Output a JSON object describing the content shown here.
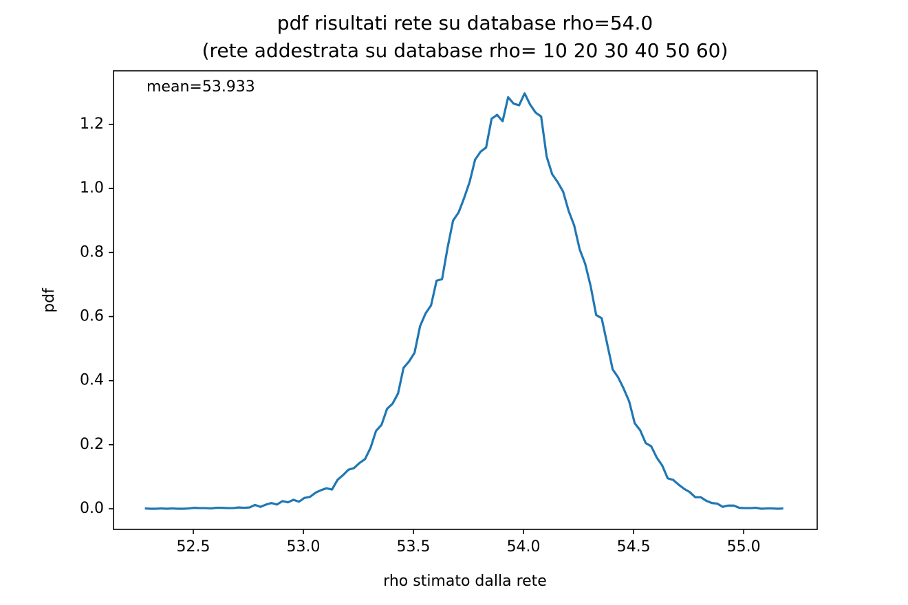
{
  "chart_data": {
    "type": "line",
    "title": "pdf risultati rete su database rho=54.0",
    "subtitle": "(rete addestrata su database rho= 10 20 30 40 50 60)",
    "xlabel": "rho stimato dalla rete",
    "ylabel": "pdf",
    "annotation": "mean=53.933",
    "x": [
      52.28,
      52.305,
      52.33,
      52.355,
      52.38,
      52.405,
      52.43,
      52.455,
      52.48,
      52.505,
      52.53,
      52.555,
      52.58,
      52.605,
      52.63,
      52.655,
      52.68,
      52.705,
      52.73,
      52.755,
      52.78,
      52.805,
      52.83,
      52.855,
      52.88,
      52.905,
      52.93,
      52.955,
      52.98,
      53.005,
      53.03,
      53.055,
      53.08,
      53.105,
      53.13,
      53.155,
      53.18,
      53.205,
      53.23,
      53.255,
      53.28,
      53.305,
      53.33,
      53.355,
      53.38,
      53.405,
      53.43,
      53.455,
      53.48,
      53.505,
      53.53,
      53.555,
      53.58,
      53.605,
      53.63,
      53.655,
      53.68,
      53.705,
      53.73,
      53.755,
      53.78,
      53.805,
      53.83,
      53.855,
      53.88,
      53.905,
      53.93,
      53.955,
      53.98,
      54.005,
      54.03,
      54.055,
      54.08,
      54.105,
      54.13,
      54.155,
      54.18,
      54.205,
      54.23,
      54.255,
      54.28,
      54.305,
      54.33,
      54.355,
      54.38,
      54.405,
      54.43,
      54.455,
      54.48,
      54.505,
      54.53,
      54.555,
      54.58,
      54.605,
      54.63,
      54.655,
      54.68,
      54.705,
      54.73,
      54.755,
      54.78,
      54.805,
      54.83,
      54.855,
      54.88,
      54.905,
      54.93,
      54.955,
      54.98,
      55.005,
      55.03,
      55.055,
      55.08,
      55.105,
      55.13,
      55.155,
      55.18
    ],
    "series": [
      {
        "name": "pdf",
        "color": "#1f77b4",
        "values": [
          0.001,
          0,
          0,
          0.001,
          0,
          0.001,
          0,
          0,
          0.001,
          0.003,
          0.002,
          0.002,
          0.001,
          0.003,
          0.003,
          0.002,
          0.002,
          0.004,
          0.003,
          0.004,
          0.012,
          0.006,
          0.013,
          0.018,
          0.013,
          0.024,
          0.02,
          0.028,
          0.022,
          0.034,
          0.037,
          0.05,
          0.058,
          0.064,
          0.06,
          0.09,
          0.105,
          0.122,
          0.127,
          0.143,
          0.155,
          0.19,
          0.243,
          0.262,
          0.312,
          0.328,
          0.36,
          0.44,
          0.46,
          0.487,
          0.57,
          0.61,
          0.635,
          0.712,
          0.717,
          0.815,
          0.9,
          0.925,
          0.97,
          1.02,
          1.09,
          1.115,
          1.128,
          1.218,
          1.23,
          1.21,
          1.285,
          1.265,
          1.26,
          1.297,
          1.262,
          1.237,
          1.225,
          1.1,
          1.045,
          1.02,
          0.99,
          0.93,
          0.885,
          0.81,
          0.765,
          0.695,
          0.605,
          0.595,
          0.515,
          0.435,
          0.41,
          0.375,
          0.335,
          0.267,
          0.245,
          0.205,
          0.195,
          0.16,
          0.135,
          0.095,
          0.09,
          0.075,
          0.062,
          0.052,
          0.036,
          0.036,
          0.025,
          0.018,
          0.016,
          0.006,
          0.01,
          0.01,
          0.003,
          0.002,
          0.002,
          0.003,
          0,
          0.001,
          0.001,
          0,
          0.001
        ]
      }
    ],
    "xlim": [
      52.1375,
      55.334
    ],
    "ylim": [
      -0.0644,
      1.3675
    ],
    "xticks": [
      {
        "value": 52.5,
        "label": "52.5"
      },
      {
        "value": 53,
        "label": "53.0"
      },
      {
        "value": 53.5,
        "label": "53.5"
      },
      {
        "value": 54,
        "label": "54.0"
      },
      {
        "value": 54.5,
        "label": "54.5"
      },
      {
        "value": 55,
        "label": "55.0"
      }
    ],
    "yticks": [
      {
        "value": 0,
        "label": "0.0"
      },
      0.2,
      0.4,
      0.6,
      0.8,
      {
        "value": 1,
        "label": "1.0"
      },
      1.2
    ],
    "grid": false
  }
}
